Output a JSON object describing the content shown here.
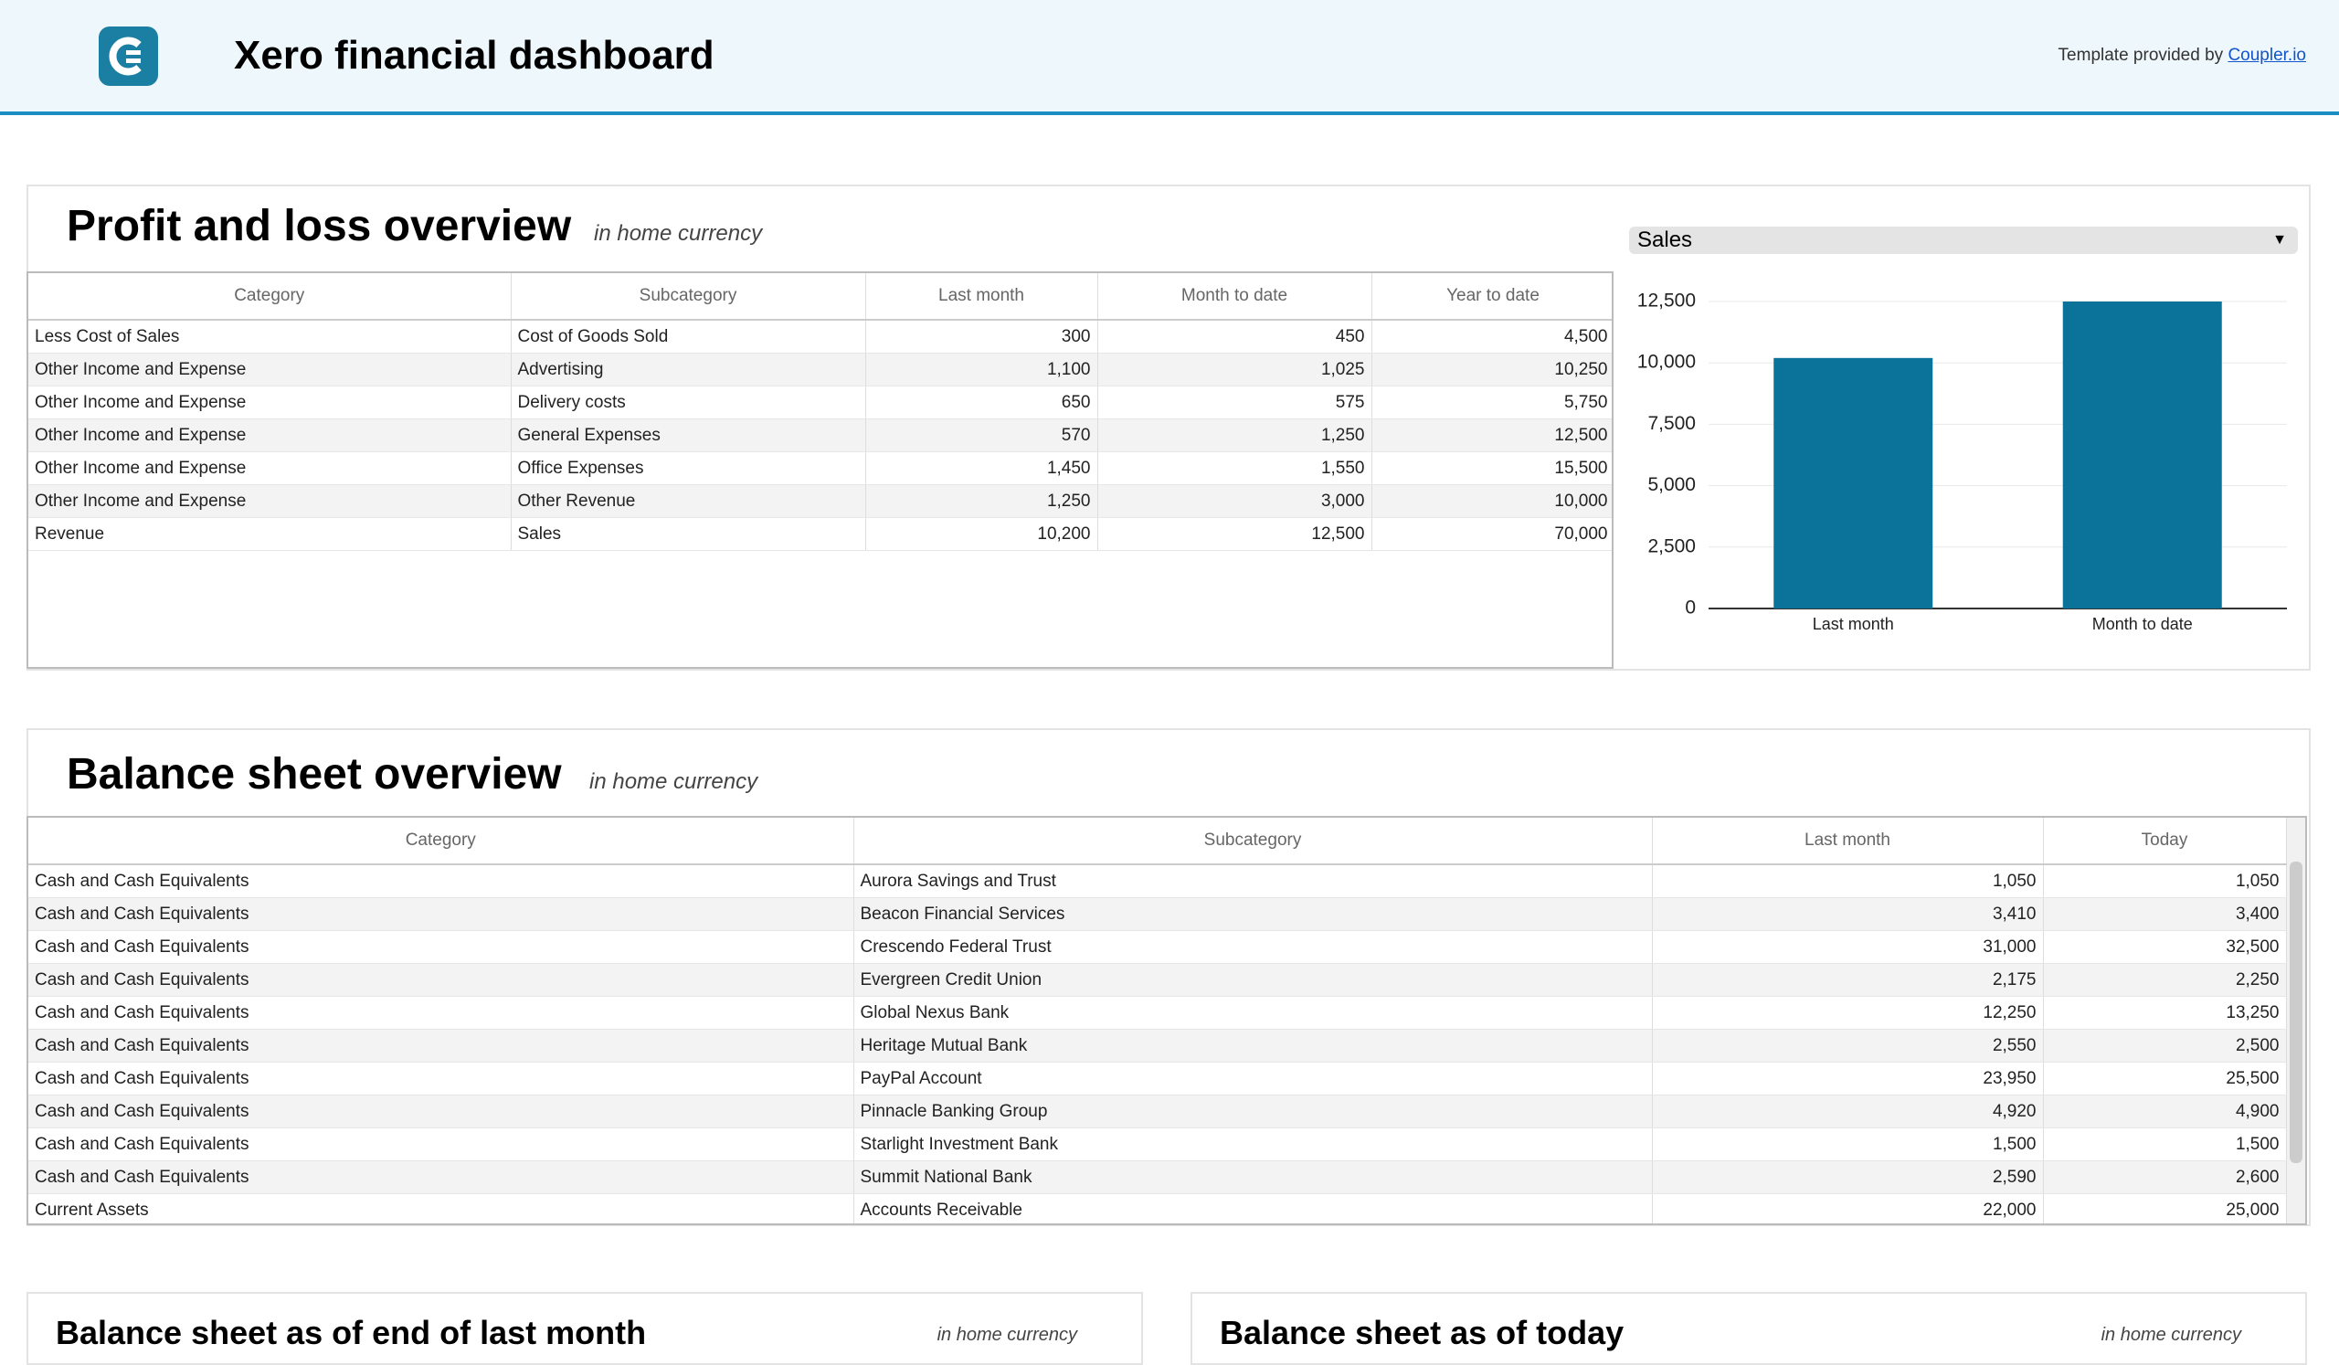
{
  "header": {
    "title": "Xero financial dashboard",
    "credit": "Template provided by",
    "credit_link": "Coupler.io"
  },
  "profit_loss": {
    "title": "Profit and loss overview",
    "subtitle": "in home currency",
    "columns": [
      "Category",
      "Subcategory",
      "Last month",
      "Month to date",
      "Year to date"
    ],
    "rows": [
      [
        "Less Cost of Sales",
        "Cost of Goods Sold",
        "300",
        "450",
        "4,500"
      ],
      [
        "Other Income and Expense",
        "Advertising",
        "1,100",
        "1,025",
        "10,250"
      ],
      [
        "Other Income and Expense",
        "Delivery costs",
        "650",
        "575",
        "5,750"
      ],
      [
        "Other Income and Expense",
        "General Expenses",
        "570",
        "1,250",
        "12,500"
      ],
      [
        "Other Income and Expense",
        "Office Expenses",
        "1,450",
        "1,550",
        "15,500"
      ],
      [
        "Other Income and Expense",
        "Other Revenue",
        "1,250",
        "3,000",
        "10,000"
      ],
      [
        "Revenue",
        "Sales",
        "10,200",
        "12,500",
        "70,000"
      ]
    ]
  },
  "chart_data": {
    "type": "bar",
    "selector": "Sales",
    "categories": [
      "Last month",
      "Month to date"
    ],
    "values": [
      10200,
      12500
    ],
    "color": "#0b7399",
    "ylim": [
      0,
      12500
    ],
    "yticks": [
      0,
      {
        "value": 2500,
        "label": "2,500"
      },
      {
        "value": 5000,
        "label": "5,000"
      },
      {
        "value": 7500,
        "label": "7,500"
      },
      {
        "value": 10000,
        "label": "10,000"
      },
      {
        "value": 12500,
        "label": "12,500"
      }
    ],
    "grid": true
  },
  "balance_sheet": {
    "title": "Balance sheet overview",
    "subtitle": "in home currency",
    "columns": [
      "Category",
      "Subcategory",
      "Last month",
      "Today"
    ],
    "rows": [
      [
        "Cash and Cash Equivalents",
        "Aurora Savings and Trust",
        "1,050",
        "1,050"
      ],
      [
        "Cash and Cash Equivalents",
        "Beacon Financial Services",
        "3,410",
        "3,400"
      ],
      [
        "Cash and Cash Equivalents",
        "Crescendo Federal Trust",
        "31,000",
        "32,500"
      ],
      [
        "Cash and Cash Equivalents",
        "Evergreen Credit Union",
        "2,175",
        "2,250"
      ],
      [
        "Cash and Cash Equivalents",
        "Global Nexus Bank",
        "12,250",
        "13,250"
      ],
      [
        "Cash and Cash Equivalents",
        "Heritage Mutual Bank",
        "2,550",
        "2,500"
      ],
      [
        "Cash and Cash Equivalents",
        "PayPal Account",
        "23,950",
        "25,500"
      ],
      [
        "Cash and Cash Equivalents",
        "Pinnacle Banking Group",
        "4,920",
        "4,900"
      ],
      [
        "Cash and Cash Equivalents",
        "Starlight Investment Bank",
        "1,500",
        "1,500"
      ],
      [
        "Cash and Cash Equivalents",
        "Summit National Bank",
        "2,590",
        "2,600"
      ],
      [
        "Current Assets",
        "Accounts Receivable",
        "22,000",
        "25,000"
      ]
    ]
  },
  "cards": [
    {
      "title": "Balance sheet as of end of last month",
      "subtitle": "in home currency"
    },
    {
      "title": "Balance sheet as of today",
      "subtitle": "in home currency"
    }
  ]
}
